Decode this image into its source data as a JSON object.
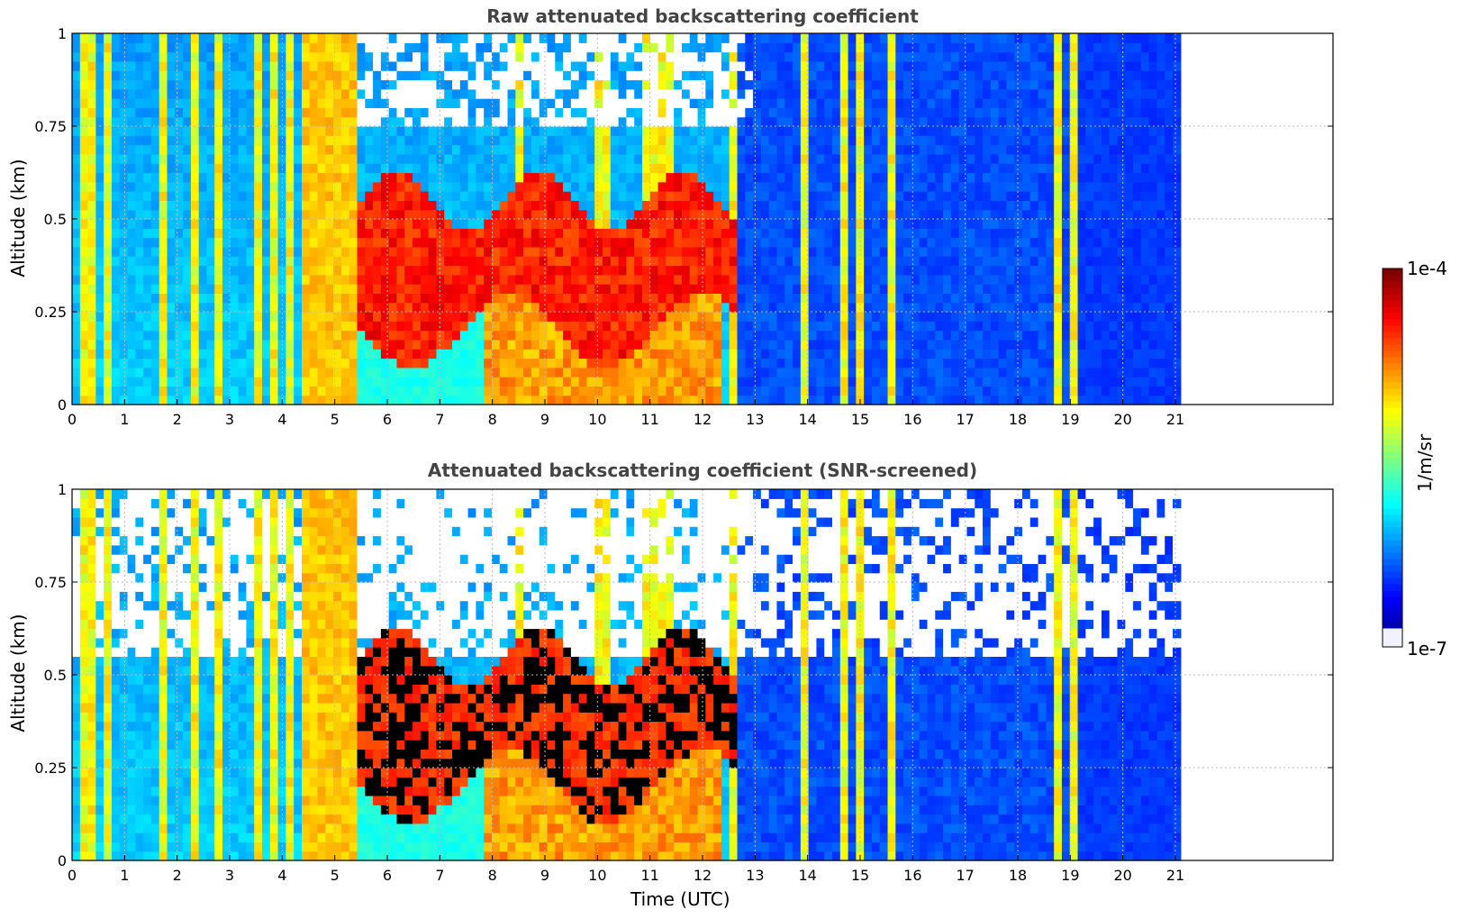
{
  "chart_data": [
    {
      "type": "heatmap",
      "title": "Raw attenuated backscattering coefficient",
      "xlabel": "",
      "ylabel": "Altitude (km)",
      "xlim": [
        0,
        24
      ],
      "ylim": [
        0,
        1
      ],
      "data_x_extent": [
        0,
        21.1
      ],
      "xticks": [
        "0",
        "1",
        "2",
        "3",
        "4",
        "5",
        "6",
        "7",
        "8",
        "9",
        "10",
        "11",
        "12",
        "13",
        "14",
        "15",
        "16",
        "17",
        "18",
        "19",
        "20",
        "21"
      ],
      "yticks": [
        "0",
        "0.25",
        "0.5",
        "0.75",
        "1"
      ],
      "grid": true,
      "features": {
        "intense_columns_utc": [
          0.3,
          0.7,
          1.7,
          2.3,
          2.8,
          3.5,
          3.9,
          4.2,
          4.5,
          4.8,
          5.1,
          5.4,
          8.5,
          10.0,
          10.2,
          11.0,
          11.3,
          12.6,
          14.0,
          14.7,
          15.0,
          15.6,
          18.8,
          19.1
        ],
        "cloud_layer_utc": [
          5.4,
          12.6
        ],
        "cloud_layer_altitude_km": [
          0.2,
          0.55
        ]
      }
    },
    {
      "type": "heatmap",
      "title": "Attenuated backscattering coefficient (SNR-screened)",
      "xlabel": "Time (UTC)",
      "ylabel": "Altitude (km)",
      "xlim": [
        0,
        24
      ],
      "ylim": [
        0,
        1
      ],
      "data_x_extent": [
        0,
        21.1
      ],
      "xticks": [
        "0",
        "1",
        "2",
        "3",
        "4",
        "5",
        "6",
        "7",
        "8",
        "9",
        "10",
        "11",
        "12",
        "13",
        "14",
        "15",
        "16",
        "17",
        "18",
        "19",
        "20",
        "21"
      ],
      "yticks": [
        "0",
        "0.25",
        "0.5",
        "0.75",
        "1"
      ],
      "grid": true,
      "features": {
        "screened_above_km": 0.55,
        "saturated_color": "#000000"
      }
    }
  ],
  "colorbar": {
    "label": "1/m/sr",
    "max_label": "1e-4",
    "min_label": "1e-7",
    "colormap": "jet",
    "colors": [
      "#f2f2ff",
      "#0000ff",
      "#00b0ff",
      "#00ffff",
      "#ffff00",
      "#ff8000",
      "#ff0000",
      "#800000"
    ]
  },
  "colors": {
    "grid": "#bbbbbb",
    "masked": "#ffffff"
  }
}
